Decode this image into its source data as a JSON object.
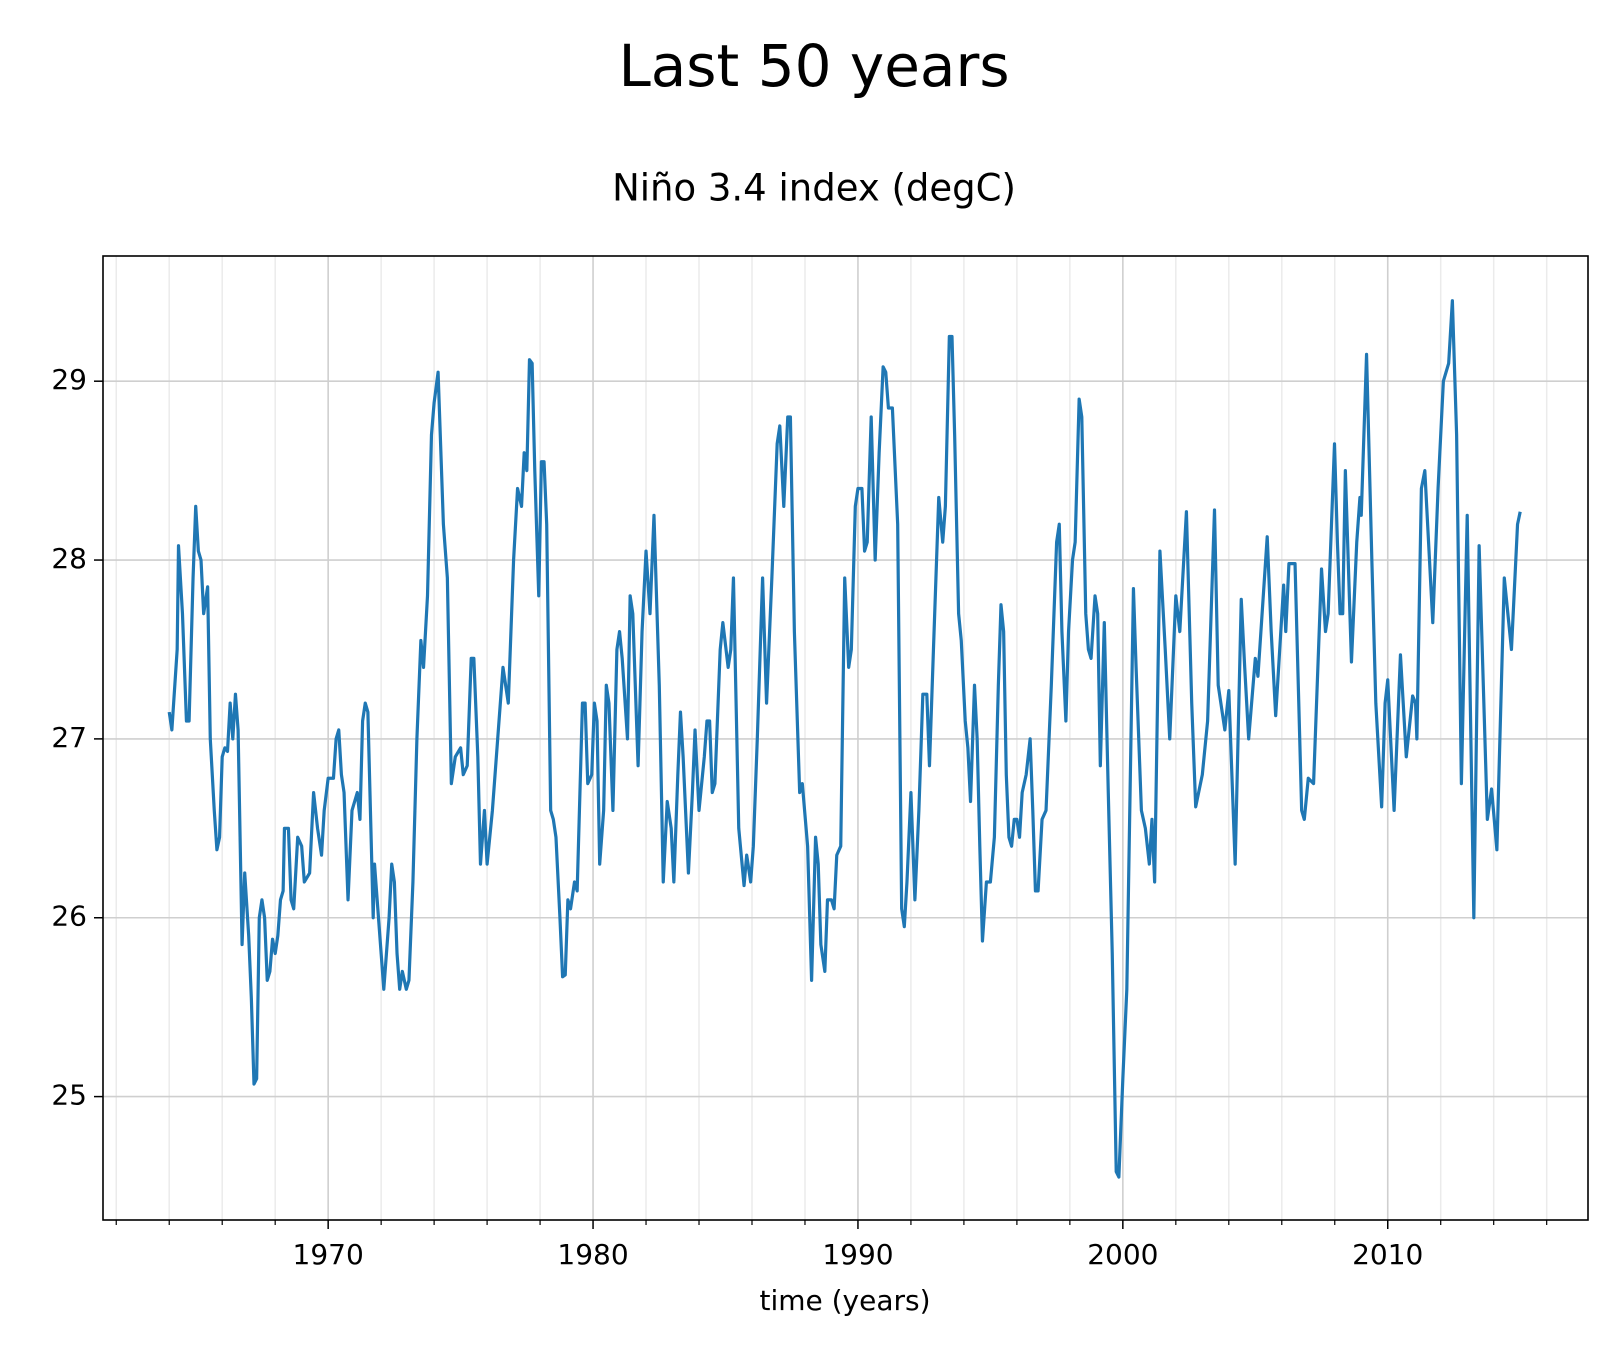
{
  "chart_data": {
    "type": "line",
    "title": "Last 50 years",
    "subtitle": "Niño 3.4 index (degC)",
    "x_label": "time (years)",
    "xlim": [
      1961.5,
      2017.56
    ],
    "ylim": [
      24.31,
      29.7
    ],
    "xticks": [
      1970,
      1980,
      1990,
      2000,
      2010
    ],
    "xticks_minor": [
      1962,
      1964,
      1966,
      1968,
      1972,
      1974,
      1976,
      1978,
      1982,
      1984,
      1986,
      1988,
      1992,
      1994,
      1996,
      1998,
      2002,
      2004,
      2006,
      2008,
      2012,
      2014,
      2016
    ],
    "yticks": [
      25,
      26,
      27,
      28,
      29
    ],
    "grid": true,
    "x": [
      1964.0,
      1964.1,
      1964.3,
      1964.35,
      1964.5,
      1964.65,
      1964.75,
      1964.9,
      1965.0,
      1965.1,
      1965.2,
      1965.3,
      1965.45,
      1965.55,
      1965.7,
      1965.8,
      1965.9,
      1966.0,
      1966.1,
      1966.2,
      1966.3,
      1966.4,
      1966.5,
      1966.6,
      1966.75,
      1966.85,
      1967.0,
      1967.1,
      1967.2,
      1967.3,
      1967.4,
      1967.5,
      1967.6,
      1967.7,
      1967.8,
      1967.9,
      1968.0,
      1968.1,
      1968.2,
      1968.3,
      1968.35,
      1968.5,
      1968.6,
      1968.7,
      1968.85,
      1969.0,
      1969.1,
      1969.3,
      1969.45,
      1969.6,
      1969.75,
      1969.85,
      1970.0,
      1970.2,
      1970.3,
      1970.4,
      1970.5,
      1970.6,
      1970.75,
      1970.9,
      1971.1,
      1971.2,
      1971.3,
      1971.4,
      1971.5,
      1971.7,
      1971.75,
      1971.9,
      1972.1,
      1972.3,
      1972.4,
      1972.5,
      1972.6,
      1972.7,
      1972.8,
      1972.95,
      1973.05,
      1973.2,
      1973.35,
      1973.5,
      1973.6,
      1973.75,
      1973.9,
      1974.0,
      1974.15,
      1974.35,
      1974.5,
      1974.65,
      1974.8,
      1975.0,
      1975.1,
      1975.25,
      1975.4,
      1975.5,
      1975.65,
      1975.75,
      1975.9,
      1976.0,
      1976.2,
      1976.4,
      1976.6,
      1976.8,
      1977.0,
      1977.15,
      1977.3,
      1977.4,
      1977.5,
      1977.6,
      1977.7,
      1977.8,
      1977.95,
      1978.05,
      1978.15,
      1978.25,
      1978.4,
      1978.5,
      1978.6,
      1978.75,
      1978.85,
      1978.95,
      1979.05,
      1979.15,
      1979.3,
      1979.4,
      1979.6,
      1979.7,
      1979.8,
      1979.95,
      1980.05,
      1980.15,
      1980.25,
      1980.4,
      1980.5,
      1980.6,
      1980.75,
      1980.9,
      1981.0,
      1981.1,
      1981.3,
      1981.4,
      1981.5,
      1981.7,
      1981.85,
      1982.0,
      1982.15,
      1982.3,
      1982.5,
      1982.65,
      1982.8,
      1982.95,
      1983.05,
      1983.2,
      1983.3,
      1983.4,
      1983.6,
      1983.75,
      1983.85,
      1984.0,
      1984.2,
      1984.3,
      1984.4,
      1984.5,
      1984.6,
      1984.8,
      1984.9,
      1985.1,
      1985.2,
      1985.3,
      1985.5,
      1985.7,
      1985.8,
      1985.95,
      1986.05,
      1986.2,
      1986.4,
      1986.55,
      1986.75,
      1986.95,
      1987.05,
      1987.2,
      1987.35,
      1987.45,
      1987.6,
      1987.8,
      1987.9,
      1988.1,
      1988.25,
      1988.4,
      1988.5,
      1988.6,
      1988.75,
      1988.85,
      1989.0,
      1989.1,
      1989.2,
      1989.35,
      1989.5,
      1989.65,
      1989.75,
      1989.9,
      1990.0,
      1990.15,
      1990.25,
      1990.35,
      1990.5,
      1990.65,
      1990.8,
      1990.95,
      1991.05,
      1991.15,
      1991.3,
      1991.5,
      1991.65,
      1991.75,
      1991.85,
      1992.0,
      1992.15,
      1992.3,
      1992.45,
      1992.6,
      1992.7,
      1992.85,
      1993.05,
      1993.2,
      1993.3,
      1993.45,
      1993.55,
      1993.65,
      1993.8,
      1993.9,
      1994.05,
      1994.15,
      1994.25,
      1994.4,
      1994.5,
      1994.6,
      1994.7,
      1994.85,
      1995.0,
      1995.15,
      1995.3,
      1995.4,
      1995.5,
      1995.6,
      1995.7,
      1995.8,
      1995.9,
      1996.0,
      1996.1,
      1996.2,
      1996.35,
      1996.5,
      1996.6,
      1996.7,
      1996.8,
      1996.95,
      1997.1,
      1997.3,
      1997.5,
      1997.6,
      1997.7,
      1997.85,
      1997.95,
      1998.1,
      1998.2,
      1998.35,
      1998.45,
      1998.6,
      1998.7,
      1998.8,
      1998.95,
      1999.05,
      1999.15,
      1999.3,
      1999.45,
      1999.6,
      1999.75,
      1999.85,
      2000.0,
      2000.15,
      2000.4,
      2000.5,
      2000.7,
      2000.85,
      2001.0,
      2001.1,
      2001.2,
      2001.4,
      2001.6,
      2001.77,
      2002.0,
      2002.15,
      2002.4,
      2002.6,
      2002.75,
      2003.0,
      2003.2,
      2003.46,
      2003.6,
      2003.85,
      2004.0,
      2004.24,
      2004.47,
      2004.6,
      2004.75,
      2005.0,
      2005.1,
      2005.45,
      2005.6,
      2005.77,
      2006.07,
      2006.15,
      2006.27,
      2006.5,
      2006.75,
      2006.85,
      2007.0,
      2007.2,
      2007.5,
      2007.65,
      2007.75,
      2007.99,
      2008.1,
      2008.2,
      2008.3,
      2008.4,
      2008.63,
      2008.83,
      2008.95,
      2009.0,
      2009.2,
      2009.4,
      2009.55,
      2009.77,
      2009.9,
      2010.0,
      2010.24,
      2010.48,
      2010.7,
      2010.94,
      2011.05,
      2011.1,
      2011.27,
      2011.4,
      2011.7,
      2011.9,
      2012.1,
      2012.3,
      2012.44,
      2012.6,
      2012.78,
      2013.0,
      2013.25,
      2013.45,
      2013.76,
      2013.92,
      2014.12,
      2014.4,
      2014.67,
      2014.9,
      2015.0
    ],
    "series": [
      {
        "name": "Niño 3.4",
        "color": "#1f77b4",
        "values": [
          27.15,
          27.05,
          27.5,
          28.08,
          27.7,
          27.1,
          27.1,
          27.9,
          28.3,
          28.05,
          28.0,
          27.7,
          27.85,
          27.0,
          26.6,
          26.38,
          26.45,
          26.9,
          26.95,
          26.93,
          27.2,
          27.0,
          27.25,
          27.05,
          25.85,
          26.25,
          25.9,
          25.55,
          25.07,
          25.1,
          26.0,
          26.1,
          26.0,
          25.65,
          25.7,
          25.88,
          25.8,
          25.9,
          26.1,
          26.15,
          26.5,
          26.5,
          26.1,
          26.05,
          26.45,
          26.4,
          26.2,
          26.25,
          26.7,
          26.5,
          26.35,
          26.6,
          26.78,
          26.78,
          27.0,
          27.05,
          26.8,
          26.7,
          26.1,
          26.6,
          26.7,
          26.55,
          27.1,
          27.2,
          27.15,
          26.0,
          26.3,
          26.0,
          25.6,
          26.0,
          26.3,
          26.2,
          25.8,
          25.6,
          25.7,
          25.6,
          25.65,
          26.2,
          27.0,
          27.55,
          27.4,
          27.8,
          28.7,
          28.88,
          29.05,
          28.2,
          27.9,
          26.75,
          26.9,
          26.95,
          26.8,
          26.85,
          27.45,
          27.45,
          26.9,
          26.3,
          26.6,
          26.3,
          26.6,
          27.0,
          27.4,
          27.2,
          28.0,
          28.4,
          28.3,
          28.6,
          28.5,
          29.12,
          29.1,
          28.5,
          27.8,
          28.55,
          28.55,
          28.2,
          26.6,
          26.55,
          26.45,
          26.0,
          25.67,
          25.68,
          26.1,
          26.05,
          26.2,
          26.15,
          27.2,
          27.2,
          26.75,
          26.8,
          27.2,
          27.1,
          26.3,
          26.6,
          27.3,
          27.2,
          26.6,
          27.5,
          27.6,
          27.45,
          27.0,
          27.8,
          27.7,
          26.85,
          27.6,
          28.05,
          27.7,
          28.25,
          27.3,
          26.2,
          26.65,
          26.5,
          26.2,
          26.8,
          27.15,
          26.9,
          26.25,
          26.7,
          27.05,
          26.6,
          26.9,
          27.1,
          27.1,
          26.7,
          26.75,
          27.5,
          27.65,
          27.4,
          27.5,
          27.9,
          26.5,
          26.18,
          26.35,
          26.2,
          26.4,
          27.0,
          27.9,
          27.2,
          27.9,
          28.65,
          28.75,
          28.3,
          28.8,
          28.8,
          27.6,
          26.7,
          26.75,
          26.4,
          25.65,
          26.45,
          26.3,
          25.85,
          25.7,
          26.1,
          26.1,
          26.05,
          26.35,
          26.4,
          27.9,
          27.4,
          27.5,
          28.3,
          28.4,
          28.4,
          28.05,
          28.1,
          28.8,
          28.0,
          28.6,
          29.08,
          29.05,
          28.85,
          28.85,
          28.2,
          26.05,
          25.95,
          26.2,
          26.7,
          26.1,
          26.6,
          27.25,
          27.25,
          26.85,
          27.5,
          28.35,
          28.1,
          28.3,
          29.25,
          29.25,
          28.7,
          27.7,
          27.55,
          27.1,
          26.95,
          26.65,
          27.3,
          27.0,
          26.4,
          25.87,
          26.2,
          26.2,
          26.45,
          27.3,
          27.75,
          27.6,
          26.8,
          26.45,
          26.4,
          26.55,
          26.55,
          26.45,
          26.7,
          26.8,
          27.0,
          26.6,
          26.15,
          26.15,
          26.55,
          26.6,
          27.3,
          28.1,
          28.2,
          27.6,
          27.1,
          27.6,
          28.0,
          28.1,
          28.9,
          28.8,
          27.7,
          27.5,
          27.45,
          27.8,
          27.7,
          26.85,
          27.65,
          26.7,
          25.8,
          24.58,
          24.55,
          25.1,
          25.6,
          27.84,
          27.4,
          26.6,
          26.5,
          26.3,
          26.55,
          26.2,
          28.05,
          27.5,
          27.0,
          27.8,
          27.6,
          28.27,
          27.2,
          26.62,
          26.8,
          27.1,
          28.28,
          27.3,
          27.05,
          27.27,
          26.3,
          27.78,
          27.4,
          27.0,
          27.45,
          27.35,
          28.13,
          27.6,
          27.13,
          27.86,
          27.6,
          27.98,
          27.98,
          26.6,
          26.55,
          26.78,
          26.75,
          27.95,
          27.6,
          27.7,
          28.65,
          28.1,
          27.7,
          27.7,
          28.5,
          27.43,
          28.1,
          28.35,
          28.25,
          29.15,
          28.0,
          27.2,
          26.62,
          27.2,
          27.33,
          26.6,
          27.47,
          26.9,
          27.24,
          27.2,
          27.0,
          28.4,
          28.5,
          27.65,
          28.4,
          29.0,
          29.1,
          29.45,
          28.7,
          26.75,
          28.25,
          26.0,
          28.08,
          26.55,
          26.72,
          26.38,
          27.9,
          27.5,
          28.2,
          28.27
        ]
      }
    ]
  }
}
